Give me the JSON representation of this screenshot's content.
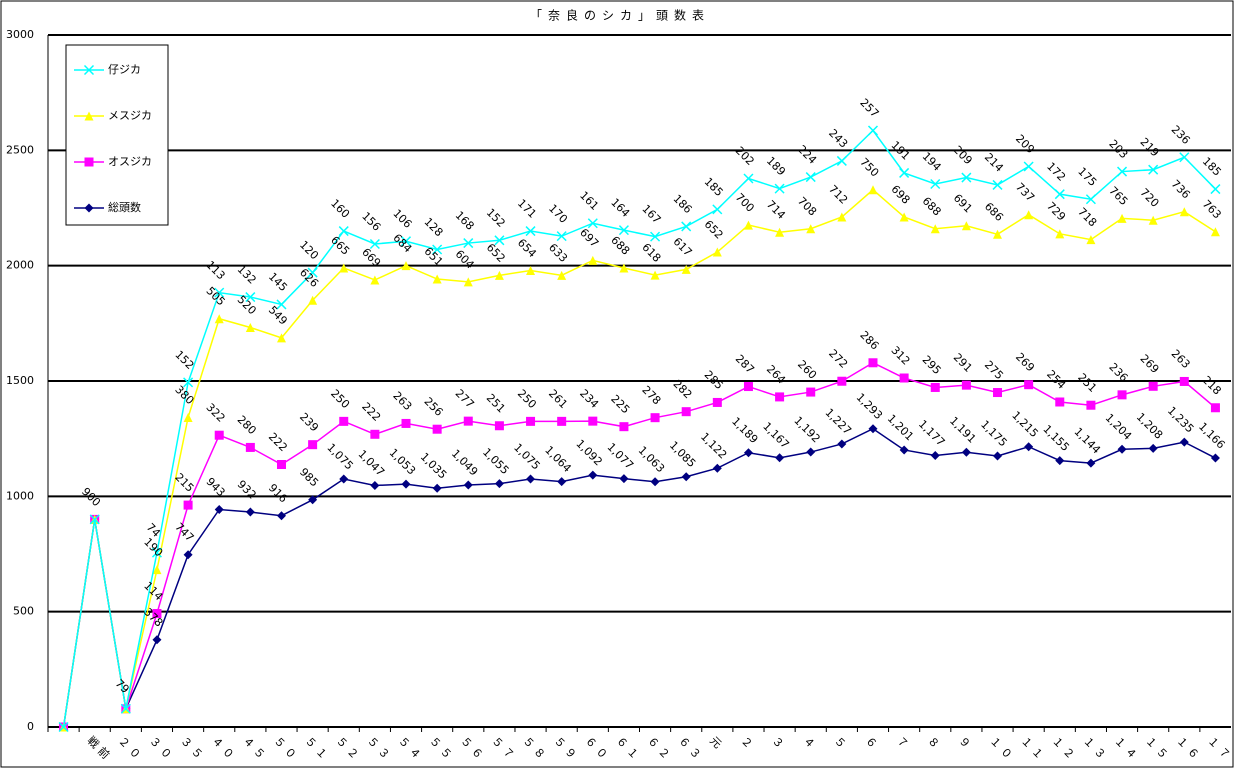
{
  "chart_data": {
    "type": "stacked-line",
    "title": "「奈良のシカ」頭数表",
    "categories": [
      null,
      "戦前",
      "２０",
      "３０",
      "３５",
      "４０",
      "４５",
      "５０",
      "５１",
      "５２",
      "５３",
      "５４",
      "５５",
      "５６",
      "５７",
      "５８",
      "５９",
      "６０",
      "６１",
      "６２",
      "６３",
      "元",
      "２",
      "３",
      "４",
      "５",
      "６",
      "７",
      "８",
      "９",
      "１０",
      "１１",
      "１２",
      "１３",
      "１４",
      "１５",
      "１６",
      "１７"
    ],
    "ylim": [
      0,
      3000
    ],
    "yticks": [
      0,
      500,
      1000,
      1500,
      2000,
      2500,
      3000
    ],
    "grid": true,
    "legend": "top-left",
    "series": [
      {
        "name": "総頭数",
        "color": "#000080",
        "marker": "diamond",
        "values": [
          0,
          900,
          79,
          378,
          747,
          943,
          932,
          916,
          985,
          1075,
          1047,
          1053,
          1035,
          1049,
          1055,
          1075,
          1064,
          1092,
          1077,
          1063,
          1085,
          1122,
          1189,
          1167,
          1192,
          1227,
          1293,
          1201,
          1177,
          1191,
          1175,
          1215,
          1155,
          1144,
          1204,
          1208,
          1235,
          1166
        ],
        "value_labels": [
          null,
          "900",
          "79",
          "378",
          "747",
          "943",
          "932",
          "916",
          "985",
          "1,075",
          "1,047",
          "1,053",
          "1,035",
          "1,049",
          "1,055",
          "1,075",
          "1,064",
          "1,092",
          "1,077",
          "1,063",
          "1,085",
          "1,122",
          "1,189",
          "1,167",
          "1,192",
          "1,227",
          "1,293",
          "1,201",
          "1,177",
          "1,191",
          "1,175",
          "1,215",
          "1,155",
          "1,144",
          "1,204",
          "1,208",
          "1,235",
          "1,166"
        ]
      },
      {
        "name": "オスジカ",
        "color": "#ff00ff",
        "marker": "square",
        "values": [
          0,
          0,
          0,
          114,
          215,
          322,
          280,
          222,
          239,
          250,
          222,
          263,
          256,
          277,
          251,
          250,
          261,
          234,
          225,
          278,
          282,
          285,
          287,
          264,
          260,
          272,
          286,
          312,
          295,
          291,
          275,
          269,
          254,
          251,
          236,
          269,
          263,
          218
        ],
        "value_labels": [
          null,
          null,
          null,
          "114",
          "215",
          "322",
          "280",
          "222",
          "239",
          "250",
          "222",
          "263",
          "256",
          "277",
          "251",
          "250",
          "261",
          "234",
          "225",
          "278",
          "282",
          "285",
          "287",
          "264",
          "260",
          "272",
          "286",
          "312",
          "295",
          "291",
          "275",
          "269",
          "254",
          "251",
          "236",
          "269",
          "263",
          "218"
        ]
      },
      {
        "name": "メスジカ",
        "color": "#ffff00",
        "marker": "triangle",
        "values": [
          0,
          0,
          0,
          190,
          380,
          505,
          520,
          549,
          626,
          665,
          669,
          684,
          651,
          604,
          652,
          654,
          633,
          697,
          688,
          618,
          617,
          652,
          700,
          714,
          708,
          712,
          750,
          698,
          688,
          691,
          686,
          737,
          729,
          718,
          765,
          720,
          736,
          763
        ],
        "value_labels": [
          null,
          null,
          null,
          "190",
          "380",
          "505",
          "520",
          "549",
          "626",
          "665",
          "669",
          "684",
          "651",
          "604",
          "652",
          "654",
          "633",
          "697",
          "688",
          "618",
          "617",
          "652",
          "700",
          "714",
          "708",
          "712",
          "750",
          "698",
          "688",
          "691",
          "686",
          "737",
          "729",
          "718",
          "765",
          "720",
          "736",
          "763"
        ]
      },
      {
        "name": "仔ジカ",
        "color": "#00ffff",
        "marker": "x",
        "values": [
          0,
          0,
          0,
          74,
          152,
          113,
          132,
          145,
          120,
          160,
          156,
          106,
          128,
          168,
          152,
          171,
          170,
          161,
          164,
          167,
          186,
          185,
          202,
          189,
          224,
          243,
          257,
          191,
          194,
          209,
          214,
          209,
          172,
          175,
          203,
          219,
          236,
          185
        ],
        "value_labels": [
          null,
          null,
          null,
          "74",
          "152",
          "113",
          "132",
          "145",
          "120",
          "160",
          "156",
          "106",
          "128",
          "168",
          "152",
          "171",
          "170",
          "161",
          "164",
          "167",
          "186",
          "185",
          "202",
          "189",
          "224",
          "243",
          "257",
          "191",
          "194",
          "209",
          "214",
          "209",
          "172",
          "175",
          "203",
          "219",
          "236",
          "185"
        ]
      }
    ]
  }
}
